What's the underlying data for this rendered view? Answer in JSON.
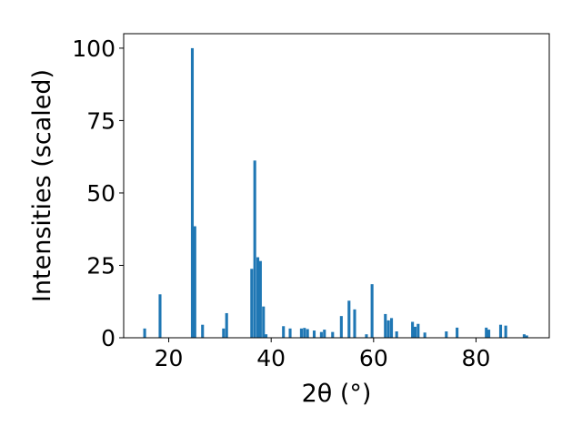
{
  "chart_data": {
    "type": "bar",
    "xlabel": "2θ (°)",
    "ylabel": "Intensities (scaled)",
    "xlim": [
      11.2,
      94.3
    ],
    "ylim": [
      0,
      105
    ],
    "bar_color": "#1f77b4",
    "bar_width": 0.55,
    "x_ticks": [
      20,
      40,
      60,
      80
    ],
    "y_ticks": [
      0,
      25,
      50,
      75,
      100
    ],
    "x": [
      15.3,
      18.3,
      24.6,
      25.1,
      26.6,
      30.7,
      31.3,
      36.2,
      36.8,
      37.4,
      37.9,
      38.5,
      39.0,
      42.4,
      43.7,
      45.9,
      46.5,
      47.1,
      48.4,
      49.8,
      50.4,
      52.0,
      53.7,
      55.2,
      56.3,
      58.6,
      59.7,
      62.3,
      62.9,
      63.5,
      64.5,
      67.6,
      68.1,
      68.7,
      70.0,
      74.2,
      76.3,
      82.0,
      82.5,
      84.8,
      85.8,
      89.4,
      89.9
    ],
    "values": [
      3.2,
      15.0,
      100,
      38.5,
      4.5,
      3.2,
      8.5,
      23.8,
      61.2,
      27.8,
      26.5,
      10.8,
      1.2,
      4.0,
      3.2,
      3.2,
      3.4,
      3.0,
      2.5,
      2.0,
      2.8,
      2.0,
      7.5,
      12.8,
      9.8,
      1.2,
      18.5,
      8.2,
      6.0,
      6.8,
      2.2,
      5.5,
      3.8,
      4.8,
      1.8,
      2.2,
      3.5,
      3.5,
      2.8,
      4.5,
      4.2,
      1.2,
      0.8
    ]
  }
}
